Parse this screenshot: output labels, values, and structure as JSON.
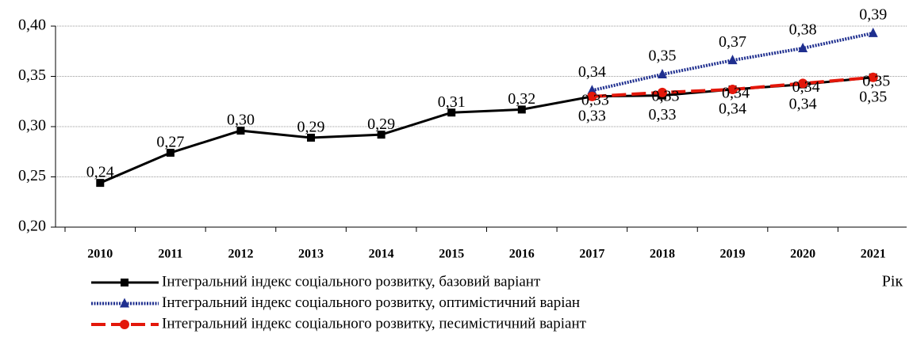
{
  "chart_data": {
    "type": "line",
    "x_label": "Рік",
    "categories": [
      "2010",
      "2011",
      "2012",
      "2013",
      "2014",
      "2015",
      "2016",
      "2017",
      "2018",
      "2019",
      "2020",
      "2021"
    ],
    "series": [
      {
        "name": "Інтегральний індекс соціального розвитку, базовий варіант",
        "color": "#000000",
        "marker": "square",
        "values": [
          0.244,
          0.274,
          0.296,
          0.289,
          0.292,
          0.314,
          0.317,
          0.33,
          0.331,
          0.337,
          0.342,
          0.349
        ],
        "value_labels": [
          "0,24",
          "0,27",
          "0,30",
          "0,29",
          "0,29",
          "0,31",
          "0,32",
          "0,33",
          "0,33",
          "0,34",
          "0,34",
          "0,35"
        ]
      },
      {
        "name": "Інтегральний індекс соціального розвитку, оптимістичний варіан",
        "color": "#1f2f8f",
        "marker": "triangle",
        "values": [
          null,
          null,
          null,
          null,
          null,
          null,
          null,
          0.336,
          0.352,
          0.366,
          0.378,
          0.393
        ],
        "value_labels": [
          null,
          null,
          null,
          null,
          null,
          null,
          null,
          "0,34",
          "0,35",
          "0,37",
          "0,38",
          "0,39"
        ]
      },
      {
        "name": "Інтегральний індекс соціального розвитку, песимістичний варіант",
        "color": "#e3170a",
        "marker": "circle",
        "values": [
          null,
          null,
          null,
          null,
          null,
          null,
          null,
          0.33,
          0.334,
          0.337,
          0.343,
          0.349
        ],
        "value_labels": [
          null,
          null,
          null,
          null,
          null,
          null,
          null,
          "0,33",
          "0,33",
          "0,34",
          "0,34",
          "0,35"
        ]
      }
    ],
    "ylim": [
      0.2,
      0.4
    ],
    "yticks": [
      {
        "value": 0.2,
        "label": "0,20"
      },
      {
        "value": 0.25,
        "label": "0,25"
      },
      {
        "value": 0.3,
        "label": "0,30"
      },
      {
        "value": 0.35,
        "label": "0,35"
      },
      {
        "value": 0.4,
        "label": "0,40"
      }
    ],
    "grid": true
  }
}
